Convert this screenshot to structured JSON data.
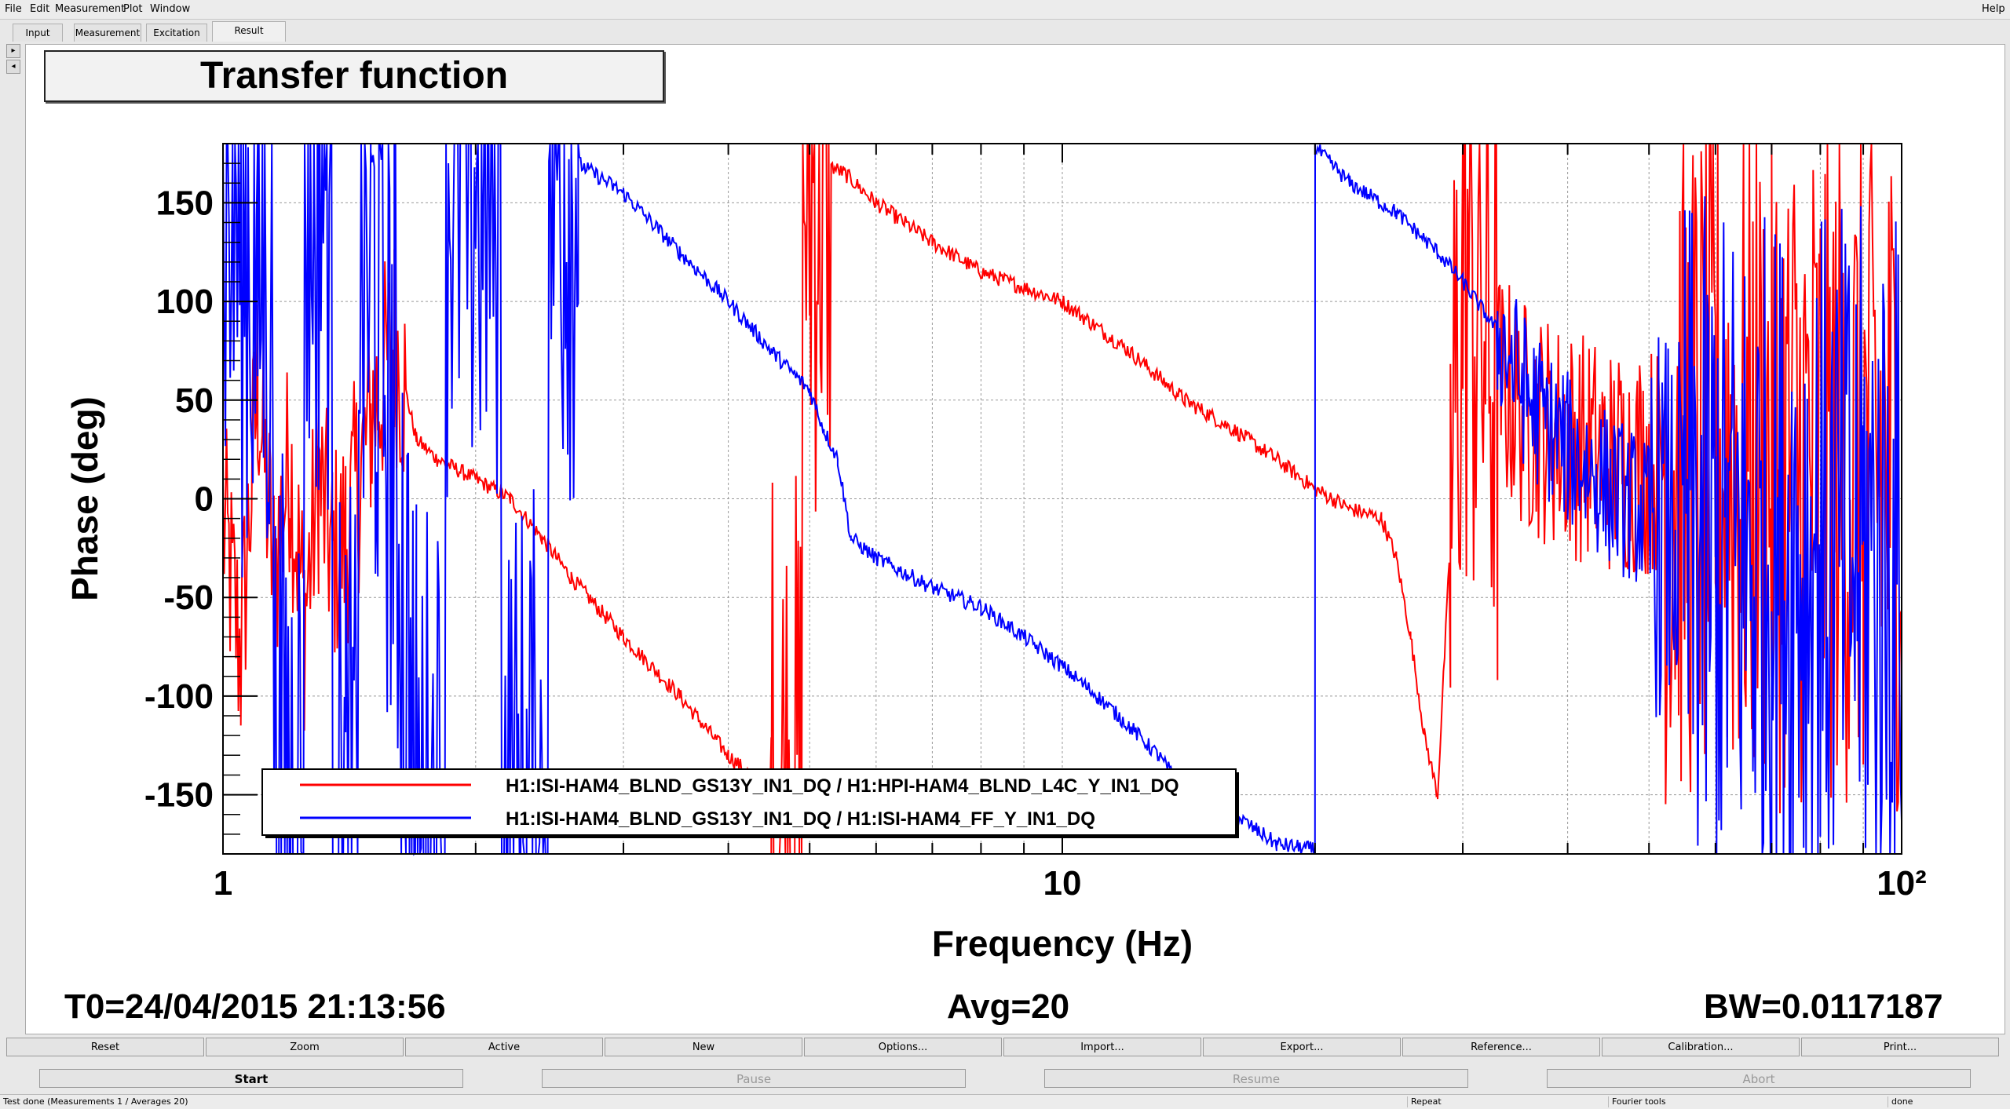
{
  "menu": {
    "items": [
      {
        "label": "File"
      },
      {
        "label": "Edit"
      },
      {
        "label": "Measurement"
      },
      {
        "label": "Plot"
      },
      {
        "label": "Window"
      }
    ],
    "help": "Help"
  },
  "tabs": [
    {
      "label": "Input"
    },
    {
      "label": "Measurement"
    },
    {
      "label": "Excitation"
    },
    {
      "label": "Result",
      "active": true
    }
  ],
  "plot": {
    "title": "Transfer function",
    "t0": "T0=24/04/2015 21:13:56",
    "avg": "Avg=20",
    "bw": "BW=0.0117187"
  },
  "chart_data": {
    "type": "line",
    "xscale": "log",
    "xlim": [
      1,
      100
    ],
    "ylim": [
      -180,
      180
    ],
    "grid": true,
    "xlabel": "Frequency (Hz)",
    "ylabel": "Phase (deg)",
    "x_ticks": [
      "1",
      "10",
      "10²"
    ],
    "x_tick_values": [
      1,
      10,
      100
    ],
    "y_ticks": [
      "150",
      "100",
      "50",
      "0",
      "-50",
      "-100",
      "-150"
    ],
    "y_tick_values": [
      150,
      100,
      50,
      0,
      -50,
      -100,
      -150
    ],
    "legend_position": "bottom-left",
    "series": [
      {
        "name": "H1:ISI-HAM4_BLND_GS13Y_IN1_DQ / H1:HPI-HAM4_BLND_L4C_Y_IN1_DQ",
        "color": "#ff0000",
        "noise_regions": [
          [
            1.0,
            1.65,
            60
          ],
          [
            4.5,
            5.3,
            180
          ],
          [
            29,
            33,
            180
          ],
          [
            33,
            52,
            60
          ],
          [
            52,
            100,
            180
          ]
        ],
        "x": [
          1.0,
          1.05,
          1.1,
          1.15,
          1.2,
          1.25,
          1.3,
          1.35,
          1.4,
          1.5,
          1.6,
          1.7,
          1.8,
          2.0,
          2.2,
          2.4,
          2.6,
          3.0,
          3.5,
          4.0,
          4.5,
          4.8,
          5.0,
          5.2,
          5.5,
          6.0,
          7.0,
          8.0,
          10.0,
          12.0,
          14.0,
          16.0,
          18.0,
          20.0,
          22.0,
          24.0,
          25.0,
          26.0,
          27.0,
          28.0,
          29.0,
          30.0,
          33.0,
          36.0,
          40.0,
          45.0,
          50.0,
          52.0,
          60.0,
          70.0,
          80.0,
          90.0,
          100.0
        ],
        "y": [
          -10,
          -80,
          60,
          -40,
          20,
          -60,
          10,
          -30,
          -20,
          40,
          80,
          30,
          20,
          10,
          0,
          -20,
          -40,
          -70,
          -100,
          -130,
          -150,
          -160,
          160,
          170,
          165,
          150,
          130,
          115,
          100,
          75,
          50,
          35,
          20,
          5,
          -5,
          -10,
          -30,
          -70,
          -120,
          -150,
          -20,
          130,
          60,
          40,
          30,
          20,
          20,
          20,
          20,
          20,
          20,
          20,
          20
        ]
      },
      {
        "name": "H1:ISI-HAM4_BLND_GS13Y_IN1_DQ / H1:ISI-HAM4_FF_Y_IN1_DQ",
        "color": "#0000ff",
        "noise_regions": [
          [
            1.0,
            2.65,
            180
          ],
          [
            33,
            50,
            40
          ],
          [
            50,
            55,
            100
          ],
          [
            55,
            100,
            180
          ]
        ],
        "x": [
          1.0,
          1.1,
          1.2,
          1.3,
          1.4,
          1.5,
          1.6,
          1.7,
          2.0,
          2.3,
          2.6,
          2.65,
          3.0,
          3.5,
          4.0,
          4.5,
          5.0,
          5.2,
          5.4,
          5.6,
          6.0,
          7.0,
          8.0,
          9.0,
          10.0,
          11.0,
          12.0,
          13.0,
          14.0,
          16.0,
          18.0,
          20.0,
          20.02,
          22.0,
          25.0,
          28.0,
          30.0,
          33.0,
          36.0,
          40.0,
          45.0,
          50.0,
          55.0,
          60.0,
          70.0,
          80.0,
          90.0,
          100.0
        ],
        "y": [
          160,
          120,
          -150,
          170,
          -170,
          120,
          40,
          -170,
          170,
          -170,
          175,
          170,
          155,
          125,
          100,
          75,
          55,
          35,
          20,
          -20,
          -30,
          -45,
          -55,
          -70,
          -85,
          -100,
          -115,
          -130,
          -148,
          -160,
          -175,
          -178,
          178,
          160,
          145,
          125,
          110,
          85,
          50,
          25,
          5,
          -10,
          -20,
          -30,
          -30,
          -30,
          -30,
          -30
        ]
      }
    ]
  },
  "buttons_row1": [
    {
      "label": "Reset"
    },
    {
      "label": "Zoom"
    },
    {
      "label": "Active"
    },
    {
      "label": "New"
    },
    {
      "label": "Options..."
    },
    {
      "label": "Import..."
    },
    {
      "label": "Export..."
    },
    {
      "label": "Reference..."
    },
    {
      "label": "Calibration..."
    },
    {
      "label": "Print..."
    }
  ],
  "buttons_row2": [
    {
      "label": "Start",
      "enabled": true
    },
    {
      "label": "Pause",
      "enabled": false
    },
    {
      "label": "Resume",
      "enabled": false
    },
    {
      "label": "Abort",
      "enabled": false
    }
  ],
  "status": {
    "message": "Test done (Measurements 1 / Averages 20)",
    "repeat": "Repeat",
    "tools": "Fourier tools",
    "state": "done"
  }
}
